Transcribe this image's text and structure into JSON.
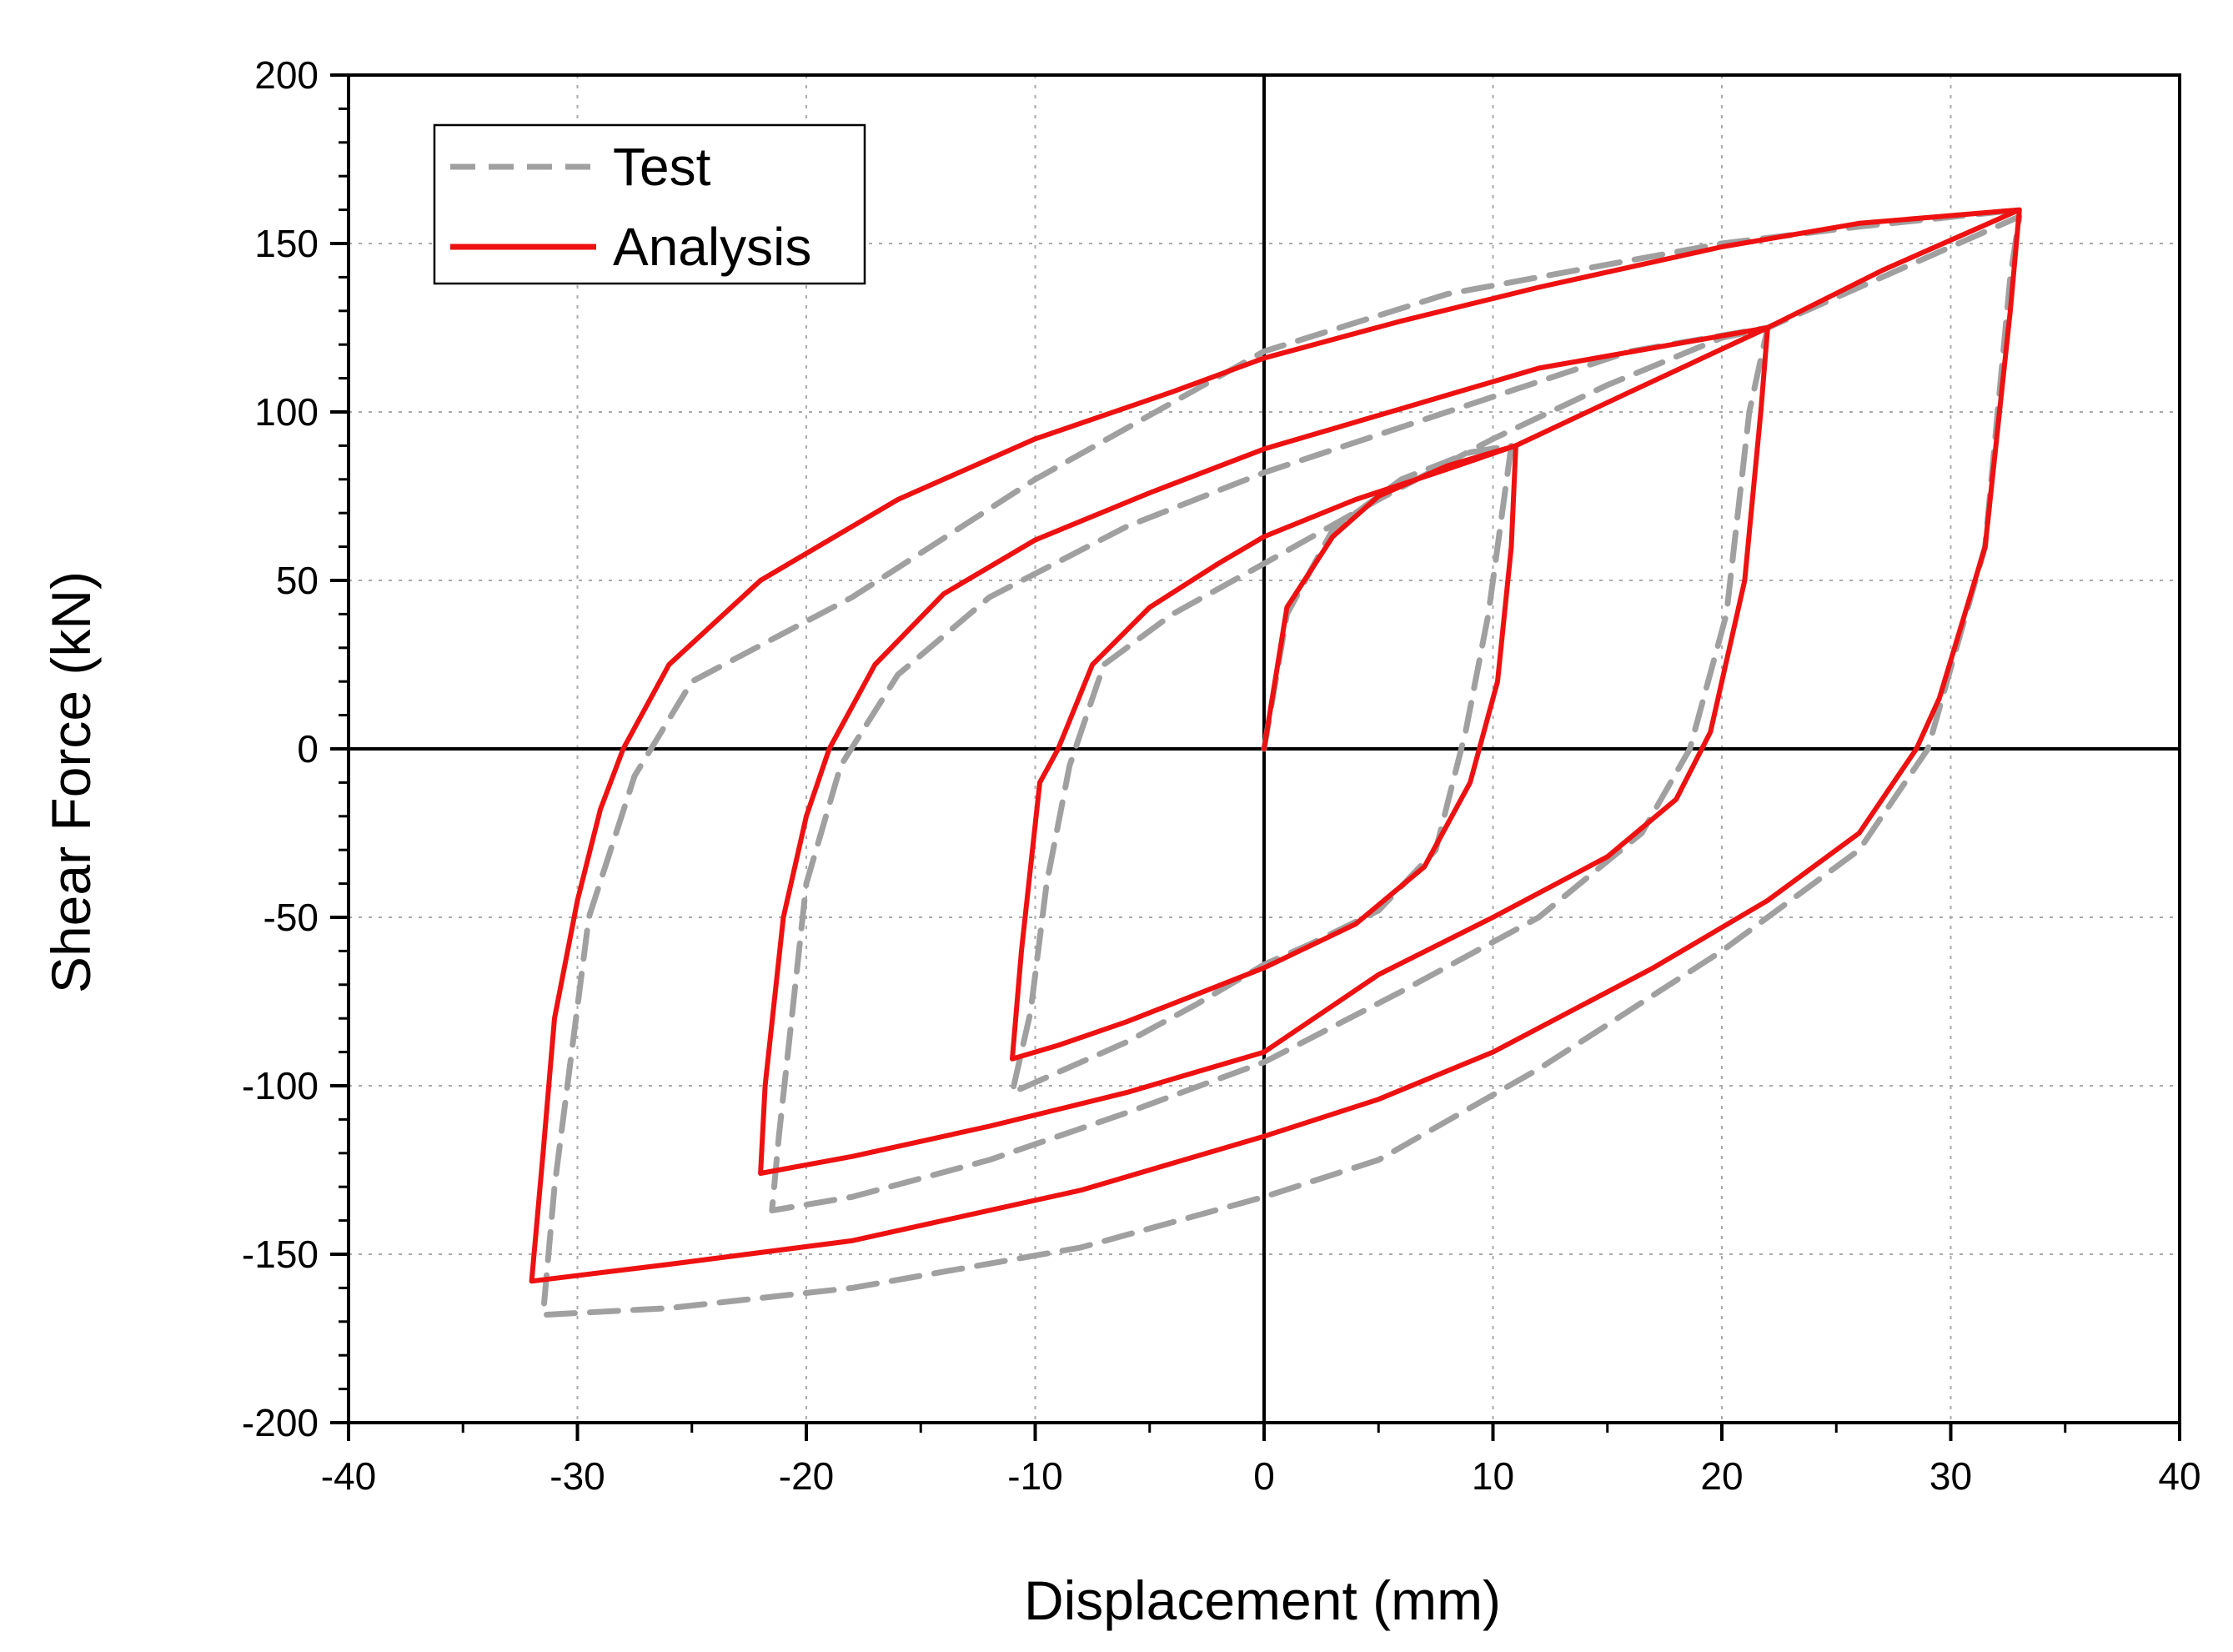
{
  "chart_data": {
    "type": "line",
    "title": "",
    "xlabel": "Displacement (mm)",
    "ylabel": "Shear Force (kN)",
    "xlim": [
      -40,
      40
    ],
    "ylim": [
      -200,
      200
    ],
    "xticks": [
      -40,
      -30,
      -20,
      -10,
      0,
      10,
      20,
      30,
      40
    ],
    "yticks": [
      -200,
      -150,
      -100,
      -50,
      0,
      50,
      100,
      150,
      200
    ],
    "xtick_labels": [
      "-40",
      "-30",
      "-20",
      "-10",
      "0",
      "10",
      "20",
      "30",
      "40"
    ],
    "ytick_labels": [
      "-200",
      "-150",
      "-100",
      "-50",
      "0",
      "50",
      "100",
      "150",
      "200"
    ],
    "grid": true,
    "legend_position": "top-left",
    "colors": {
      "test": "#a0a0a0",
      "analysis": "#ee1111",
      "axis": "#000000",
      "grid": "#aaaaaa"
    },
    "series": [
      {
        "name": "Test",
        "style": "dashed",
        "points": [
          [
            0,
            0
          ],
          [
            1,
            40
          ],
          [
            3,
            65
          ],
          [
            6,
            80
          ],
          [
            9,
            88
          ],
          [
            10.8,
            90
          ],
          [
            10.4,
            70
          ],
          [
            9.8,
            40
          ],
          [
            8.8,
            5
          ],
          [
            7.5,
            -30
          ],
          [
            5,
            -48
          ],
          [
            2,
            -58
          ],
          [
            0,
            -64
          ],
          [
            -3,
            -76
          ],
          [
            -6,
            -87
          ],
          [
            -9,
            -96
          ],
          [
            -11,
            -102
          ],
          [
            -10.2,
            -78
          ],
          [
            -9.5,
            -40
          ],
          [
            -8.5,
            -5
          ],
          [
            -7,
            25
          ],
          [
            -4,
            40
          ],
          [
            0,
            55
          ],
          [
            5,
            74
          ],
          [
            10,
            92
          ],
          [
            15,
            108
          ],
          [
            20,
            122
          ],
          [
            22,
            125
          ],
          [
            21.2,
            100
          ],
          [
            20.2,
            40
          ],
          [
            18.6,
            0
          ],
          [
            16.5,
            -25
          ],
          [
            12,
            -50
          ],
          [
            6,
            -72
          ],
          [
            0,
            -93
          ],
          [
            -6,
            -108
          ],
          [
            -12,
            -122
          ],
          [
            -18,
            -133
          ],
          [
            -21.5,
            -137
          ],
          [
            -21.2,
            -115
          ],
          [
            -20,
            -40
          ],
          [
            -18.5,
            -5
          ],
          [
            -16,
            22
          ],
          [
            -12,
            45
          ],
          [
            -6,
            66
          ],
          [
            0,
            82
          ],
          [
            8,
            100
          ],
          [
            16,
            118
          ],
          [
            22,
            125
          ],
          [
            28,
            143
          ],
          [
            33,
            158
          ],
          [
            32.6,
            140
          ],
          [
            31.5,
            60
          ],
          [
            29,
            0
          ],
          [
            26,
            -30
          ],
          [
            20,
            -60
          ],
          [
            12,
            -95
          ],
          [
            5,
            -122
          ],
          [
            0,
            -133
          ],
          [
            -8,
            -148
          ],
          [
            -18,
            -160
          ],
          [
            -26,
            -166
          ],
          [
            -31.5,
            -168
          ],
          [
            -31,
            -130
          ],
          [
            -29.5,
            -50
          ],
          [
            -27.5,
            -8
          ],
          [
            -25,
            20
          ],
          [
            -18,
            45
          ],
          [
            -10,
            80
          ],
          [
            0,
            118
          ],
          [
            8,
            135
          ],
          [
            20,
            150
          ],
          [
            26,
            155
          ],
          [
            33,
            160
          ]
        ]
      },
      {
        "name": "Analysis",
        "style": "solid",
        "points": [
          [
            0,
            0
          ],
          [
            1,
            42
          ],
          [
            3,
            63
          ],
          [
            5,
            75
          ],
          [
            8,
            84
          ],
          [
            11,
            90
          ],
          [
            10.8,
            60
          ],
          [
            10.2,
            20
          ],
          [
            9,
            -10
          ],
          [
            7,
            -35
          ],
          [
            4,
            -52
          ],
          [
            0,
            -65
          ],
          [
            -3,
            -73
          ],
          [
            -6,
            -81
          ],
          [
            -9,
            -88
          ],
          [
            -11,
            -92
          ],
          [
            -10.6,
            -60
          ],
          [
            -9.8,
            -10
          ],
          [
            -9,
            0
          ],
          [
            -7.5,
            25
          ],
          [
            -5,
            42
          ],
          [
            -2,
            55
          ],
          [
            0,
            63
          ],
          [
            4,
            74
          ],
          [
            8,
            83
          ],
          [
            11,
            90
          ],
          [
            16,
            106
          ],
          [
            22,
            125
          ],
          [
            21.7,
            100
          ],
          [
            21,
            50
          ],
          [
            19.5,
            5
          ],
          [
            18,
            -15
          ],
          [
            15,
            -32
          ],
          [
            10,
            -50
          ],
          [
            5,
            -67
          ],
          [
            0,
            -90
          ],
          [
            -6,
            -102
          ],
          [
            -12,
            -112
          ],
          [
            -18,
            -121
          ],
          [
            -22,
            -126
          ],
          [
            -21.8,
            -100
          ],
          [
            -21,
            -50
          ],
          [
            -20,
            -20
          ],
          [
            -19,
            0
          ],
          [
            -17,
            25
          ],
          [
            -14,
            46
          ],
          [
            -10,
            62
          ],
          [
            -5,
            76
          ],
          [
            0,
            89
          ],
          [
            6,
            101
          ],
          [
            12,
            113
          ],
          [
            22,
            125
          ],
          [
            27,
            142
          ],
          [
            33,
            160
          ],
          [
            32.6,
            130
          ],
          [
            31.5,
            60
          ],
          [
            29.5,
            15
          ],
          [
            28.5,
            0
          ],
          [
            26,
            -25
          ],
          [
            22,
            -45
          ],
          [
            17,
            -65
          ],
          [
            10,
            -90
          ],
          [
            5,
            -104
          ],
          [
            0,
            -115
          ],
          [
            -8,
            -131
          ],
          [
            -18,
            -146
          ],
          [
            -26,
            -153
          ],
          [
            -32,
            -158
          ],
          [
            -31.5,
            -120
          ],
          [
            -31,
            -80
          ],
          [
            -30,
            -45
          ],
          [
            -29,
            -18
          ],
          [
            -28,
            0
          ],
          [
            -26,
            25
          ],
          [
            -22,
            50
          ],
          [
            -16,
            74
          ],
          [
            -10,
            92
          ],
          [
            -4,
            106
          ],
          [
            0,
            116
          ],
          [
            6,
            127
          ],
          [
            12,
            137
          ],
          [
            20,
            149
          ],
          [
            26,
            156
          ],
          [
            33,
            160
          ]
        ]
      }
    ]
  }
}
